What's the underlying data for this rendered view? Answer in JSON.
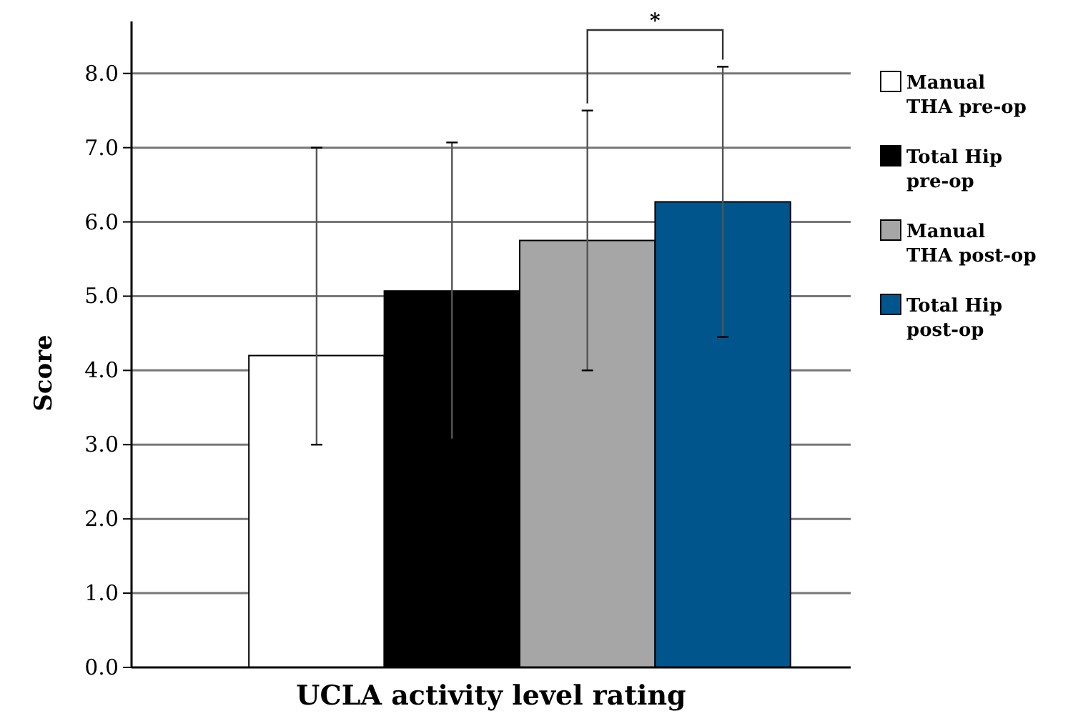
{
  "chart_data": {
    "type": "bar",
    "xlabel": "UCLA activity level rating",
    "ylabel": "Score",
    "categories": [
      null
    ],
    "series": [
      {
        "name": "Manual THA pre-op",
        "color": "#ffffff",
        "values": [
          4.2
        ],
        "errors": [
          [
            3.0,
            7.0
          ]
        ]
      },
      {
        "name": "Total Hip pre-op",
        "color": "#000000",
        "values": [
          5.07
        ],
        "errors": [
          2.0
        ]
      },
      {
        "name": "Manual THA post-op",
        "color": "#a6a6a6",
        "values": [
          5.75
        ],
        "errors": [
          1.75
        ]
      },
      {
        "name": "Total Hip post-op",
        "color": "#00568c",
        "values": [
          6.27
        ],
        "errors": [
          1.82
        ]
      }
    ],
    "ylim": [
      0,
      8.7
    ],
    "yticks": [
      {
        "value": 0,
        "label": "0.0"
      },
      {
        "value": 1,
        "label": "1.0"
      },
      {
        "value": 2,
        "label": "2.0"
      },
      {
        "value": 3,
        "label": "3.0"
      },
      {
        "value": 4,
        "label": "4.0"
      },
      {
        "value": 5,
        "label": "5.0"
      },
      {
        "value": 6,
        "label": "6.0"
      },
      {
        "value": 7,
        "label": "7.0"
      },
      {
        "value": 8,
        "label": "8.0"
      }
    ],
    "grid": "y",
    "legend": "right",
    "annotations": [
      "*"
    ]
  }
}
